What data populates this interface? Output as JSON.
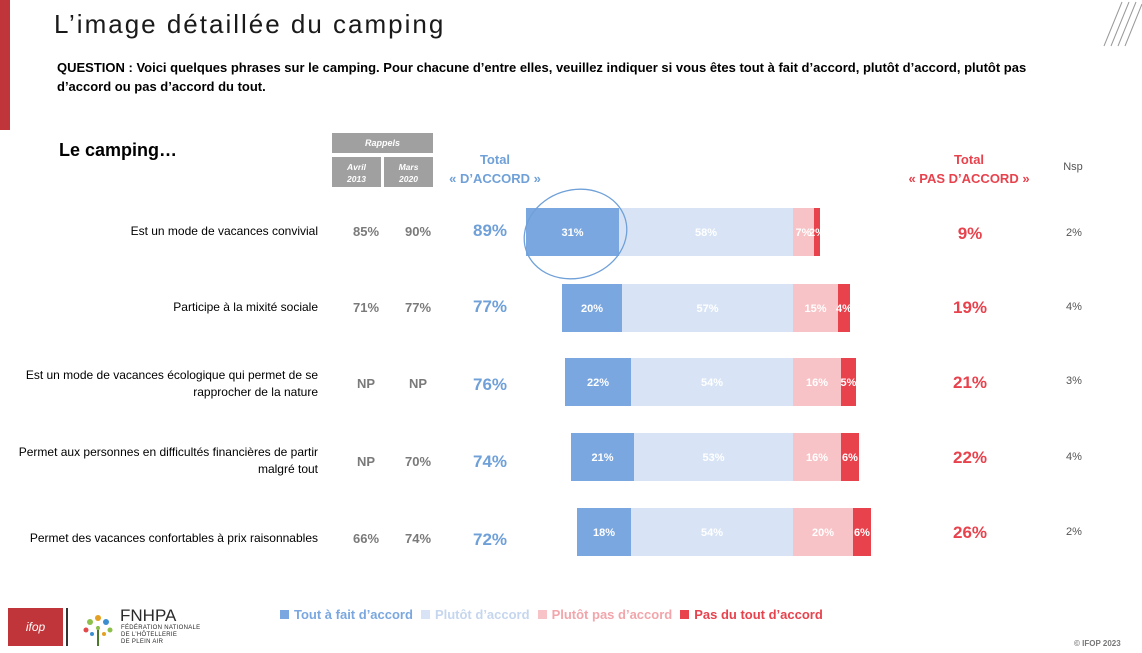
{
  "title": "L’image détaillée du camping",
  "question": "QUESTION : Voici quelques phrases sur le camping. Pour chacune d’entre elles, veuillez indiquer si vous êtes tout à fait d’accord, plutôt d’accord, plutôt pas d’accord ou pas d’accord du tout.",
  "subject": "Le camping…",
  "rappels": {
    "label": "Rappels",
    "col1": "Avril 2013",
    "col2": "Mars 2020"
  },
  "header_agree": "Total « D’ACCORD »",
  "header_disagree": "Total « PAS D’ACCORD »",
  "header_nsp": "Nsp",
  "colors": {
    "tout_a_fait": "#7aa7e0",
    "plutot": "#d8e4f5",
    "plutot_pas": "#f7c3c6",
    "pas_du_tout": "#e8424d",
    "agree_text": "#6fa0d8",
    "disagree_text": "#e8424d",
    "brand_red": "#c0353a"
  },
  "rows": [
    {
      "label": "Est un mode de vacances convivial",
      "r2013": "85%",
      "r2020": "90%",
      "total_agree": "89%",
      "total_disagree": "9%",
      "nsp": "2%"
    },
    {
      "label": "Participe à la mixité sociale",
      "r2013": "71%",
      "r2020": "77%",
      "total_agree": "77%",
      "total_disagree": "19%",
      "nsp": "4%"
    },
    {
      "label": "Est un mode de vacances écologique qui permet de se rapprocher de la nature",
      "r2013": "NP",
      "r2020": "NP",
      "total_agree": "76%",
      "total_disagree": "21%",
      "nsp": "3%"
    },
    {
      "label": "Permet aux personnes en difficultés financières de partir malgré tout",
      "r2013": "NP",
      "r2020": "70%",
      "total_agree": "74%",
      "total_disagree": "22%",
      "nsp": "4%"
    },
    {
      "label": "Permet des vacances confortables à prix raisonnables",
      "r2013": "66%",
      "r2020": "74%",
      "total_agree": "72%",
      "total_disagree": "26%",
      "nsp": "2%"
    }
  ],
  "chart_data": {
    "type": "bar",
    "orientation": "horizontal",
    "stacked": true,
    "categories": [
      "Est un mode de vacances convivial",
      "Participe à la mixité sociale",
      "Est un mode de vacances écologique qui permet de se rapprocher de la nature",
      "Permet aux personnes en difficultés financières de partir malgré tout",
      "Permet des vacances confortables à prix raisonnables"
    ],
    "series": [
      {
        "name": "Tout à fait d’accord",
        "color": "#7aa7e0",
        "values": [
          31,
          20,
          22,
          21,
          18
        ]
      },
      {
        "name": "Plutôt d’accord",
        "color": "#d8e4f5",
        "values": [
          58,
          57,
          54,
          53,
          54
        ]
      },
      {
        "name": "Plutôt pas d’accord",
        "color": "#f7c3c6",
        "values": [
          7,
          15,
          16,
          16,
          20
        ]
      },
      {
        "name": "Pas du tout d’accord",
        "color": "#e8424d",
        "values": [
          2,
          4,
          5,
          6,
          6
        ]
      }
    ],
    "data_labels": [
      [
        "31%",
        "58%",
        "7%",
        "2%"
      ],
      [
        "20%",
        "57%",
        "15%",
        "4%"
      ],
      [
        "22%",
        "54%",
        "16%",
        "5%"
      ],
      [
        "21%",
        "53%",
        "16%",
        "6%"
      ],
      [
        "18%",
        "54%",
        "20%",
        "6%"
      ]
    ],
    "legend_position": "bottom",
    "grid": false
  },
  "logos": {
    "ifop": "ifop",
    "fnhpa": "FNHPA",
    "fnhpa_sub": "FÉDÉRATION NATIONALE DE L’HÔTELLERIE DE PLEIN AIR"
  },
  "copyright": "© IFOP 2023"
}
